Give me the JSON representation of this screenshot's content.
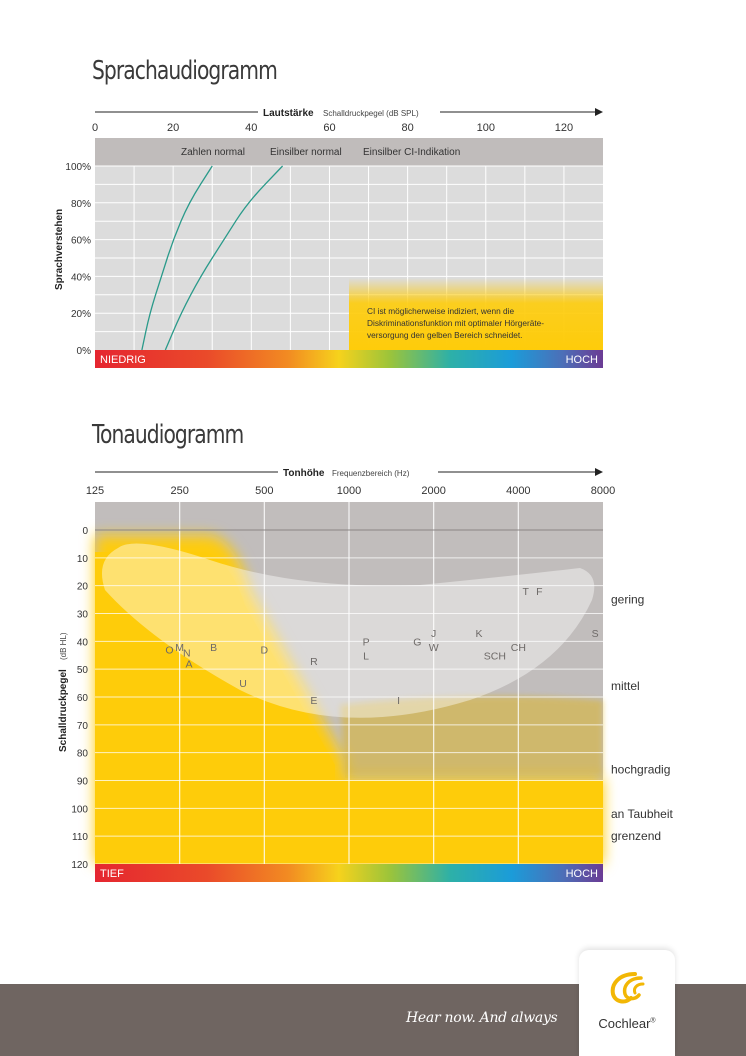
{
  "chart_data": [
    {
      "type": "line",
      "title": "Sprachaudiogramm",
      "xlabel": "Lautstärke",
      "xlabel_sub": "Schalldruckpegel (dB SPL)",
      "ylabel": "Sprachverstehen",
      "xlim": [
        0,
        130
      ],
      "ylim": [
        0,
        100
      ],
      "x_ticks": [
        0,
        20,
        40,
        60,
        80,
        100,
        120
      ],
      "y_ticks": [
        0,
        20,
        40,
        60,
        80,
        100
      ],
      "y_tick_labels": [
        "0%",
        "20%",
        "40%",
        "60%",
        "80%",
        "100%"
      ],
      "grid": true,
      "series": [
        {
          "name": "Zahlen normal",
          "points": [
            [
              12,
              0
            ],
            [
              14,
              20
            ],
            [
              17,
              40
            ],
            [
              20,
              60
            ],
            [
              24,
              80
            ],
            [
              30,
              100
            ]
          ]
        },
        {
          "name": "Einsilber normal",
          "points": [
            [
              18,
              0
            ],
            [
              22,
              20
            ],
            [
              27,
              40
            ],
            [
              33,
              60
            ],
            [
              39,
              80
            ],
            [
              48,
              100
            ]
          ]
        }
      ],
      "header_labels": [
        "Zahlen normal",
        "Einsilber normal",
        "Einsilber CI-Indikation"
      ],
      "ci_region": {
        "x_start": 65,
        "y_start": 0,
        "y_end": 30
      },
      "annotation": [
        "CI ist möglicherweise indiziert, wenn die",
        "Diskriminationsfunktion mit optimaler Hörgeräte-",
        "versorgung den gelben Bereich schneidet."
      ],
      "scale_bar": {
        "left": "NIEDRIG",
        "right": "HOCH"
      }
    },
    {
      "type": "scatter",
      "title": "Tonaudiogramm",
      "xlabel": "Tonhöhe",
      "xlabel_sub": "Frequenzbereich (Hz)",
      "ylabel": "Schalldruckpegel",
      "ylabel_sub": "(dB HL)",
      "x_scale": "log",
      "x_ticks": [
        125,
        250,
        500,
        1000,
        2000,
        4000,
        8000
      ],
      "y_ticks": [
        0,
        10,
        20,
        30,
        40,
        50,
        60,
        70,
        80,
        90,
        100,
        110,
        120
      ],
      "ylim": [
        0,
        120
      ],
      "y_inverted": true,
      "grid": true,
      "phonemes": [
        {
          "label": "O",
          "x": 230,
          "y": 43
        },
        {
          "label": "M",
          "x": 250,
          "y": 42
        },
        {
          "label": "N",
          "x": 265,
          "y": 44
        },
        {
          "label": "A",
          "x": 270,
          "y": 48
        },
        {
          "label": "B",
          "x": 330,
          "y": 42
        },
        {
          "label": "U",
          "x": 420,
          "y": 55
        },
        {
          "label": "D",
          "x": 500,
          "y": 43
        },
        {
          "label": "R",
          "x": 750,
          "y": 47
        },
        {
          "label": "E",
          "x": 750,
          "y": 61
        },
        {
          "label": "P",
          "x": 1150,
          "y": 40
        },
        {
          "label": "L",
          "x": 1150,
          "y": 45
        },
        {
          "label": "I",
          "x": 1500,
          "y": 61
        },
        {
          "label": "G",
          "x": 1750,
          "y": 40
        },
        {
          "label": "J",
          "x": 2000,
          "y": 37
        },
        {
          "label": "W",
          "x": 2000,
          "y": 42
        },
        {
          "label": "K",
          "x": 2900,
          "y": 37
        },
        {
          "label": "SCH",
          "x": 3300,
          "y": 45
        },
        {
          "label": "CH",
          "x": 4000,
          "y": 42
        },
        {
          "label": "T",
          "x": 4250,
          "y": 22
        },
        {
          "label": "F",
          "x": 4750,
          "y": 22
        },
        {
          "label": "S",
          "x": 7500,
          "y": 37
        }
      ],
      "degree_labels": [
        {
          "text": "gering",
          "y": 25
        },
        {
          "text": "mittel",
          "y": 56
        },
        {
          "text": "hochgradig",
          "y": 86
        },
        {
          "text": "an Taubheit",
          "y": 102
        },
        {
          "text": "grenzend",
          "y": 110
        }
      ],
      "scale_bar": {
        "left": "TIEF",
        "right": "HOCH"
      }
    }
  ],
  "footer": {
    "slogan": "Hear now. And always",
    "brand": "Cochlear"
  },
  "colors": {
    "yellow": "#fecc0a",
    "grid_bg": "#dcdcdc",
    "header": "#c0bcbb",
    "footer": "#6f6561",
    "curve": "#2a9a8a"
  }
}
